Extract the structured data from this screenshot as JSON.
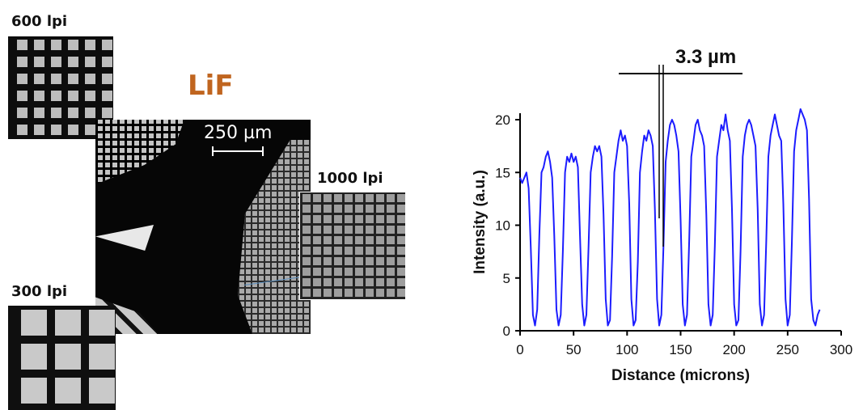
{
  "labels": {
    "lpi_600": "600 lpi",
    "lpi_300": "300 lpi",
    "lpi_1000": "1000 lpi",
    "material": "LiF",
    "scale_bar": "250 µm",
    "resolution": "3.3 µm"
  },
  "colors": {
    "material": "#c0651f",
    "trace": "#1c1cff"
  },
  "chart_data": {
    "type": "line",
    "title": "",
    "xlabel": "Distance (microns)",
    "ylabel": "Intensity (a.u.)",
    "xlim": [
      0,
      300
    ],
    "ylim": [
      0,
      21
    ],
    "xticks": [
      0,
      50,
      100,
      150,
      200,
      250,
      300
    ],
    "yticks": [
      0,
      5,
      10,
      15,
      20
    ],
    "series": [
      {
        "x": [
          0,
          2,
          4,
          6,
          8,
          10,
          12,
          14,
          16,
          18,
          20,
          22,
          24,
          26,
          28,
          30,
          32,
          34,
          36,
          38,
          40,
          42,
          44,
          46,
          48,
          50,
          52,
          54,
          56,
          58,
          60,
          62,
          64,
          66,
          68,
          70,
          72,
          74,
          76,
          78,
          80,
          82,
          84,
          86,
          88,
          90,
          92,
          94,
          96,
          98,
          100,
          102,
          104,
          106,
          108,
          110,
          112,
          114,
          116,
          118,
          120,
          122,
          124,
          126,
          128,
          130,
          132,
          134,
          136,
          138,
          140,
          142,
          144,
          146,
          148,
          150,
          152,
          154,
          156,
          158,
          160,
          162,
          164,
          166,
          168,
          170,
          172,
          174,
          176,
          178,
          180,
          182,
          184,
          186,
          188,
          190,
          192,
          194,
          196,
          198,
          200,
          202,
          204,
          206,
          208,
          210,
          212,
          214,
          216,
          218,
          220,
          222,
          224,
          226,
          228,
          230,
          232,
          234,
          236,
          238,
          240,
          242,
          244,
          246,
          248,
          250,
          252,
          254,
          256,
          258,
          260,
          262,
          264,
          266,
          268,
          270,
          272,
          274,
          276,
          278,
          280
        ],
        "y": [
          14.5,
          14.0,
          14.5,
          15.0,
          13.5,
          8.0,
          1.5,
          0.5,
          2.0,
          9.0,
          15.0,
          15.5,
          16.5,
          17.0,
          16.0,
          14.5,
          9.0,
          2.0,
          0.5,
          1.5,
          7.5,
          15.0,
          16.5,
          16.0,
          16.8,
          16.0,
          16.5,
          15.5,
          9.0,
          2.5,
          0.5,
          1.5,
          8.0,
          15.0,
          16.5,
          17.5,
          17.0,
          17.5,
          16.5,
          11.0,
          3.0,
          0.5,
          1.0,
          7.0,
          15.0,
          16.5,
          18.0,
          19.0,
          18.0,
          18.5,
          17.5,
          12.0,
          3.0,
          0.5,
          1.0,
          6.5,
          15.0,
          17.0,
          18.5,
          18.0,
          19.0,
          18.5,
          17.5,
          11.5,
          3.0,
          0.5,
          1.5,
          8.0,
          16.0,
          18.0,
          19.5,
          20.0,
          19.5,
          18.5,
          17.0,
          10.5,
          2.5,
          0.5,
          1.5,
          8.5,
          16.5,
          18.0,
          19.5,
          20.0,
          19.0,
          18.5,
          17.5,
          11.0,
          2.5,
          0.5,
          1.5,
          8.0,
          16.5,
          18.0,
          19.5,
          19.0,
          20.5,
          19.0,
          18.0,
          11.5,
          2.5,
          0.5,
          1.0,
          7.5,
          16.5,
          18.5,
          19.5,
          20.0,
          19.5,
          18.5,
          17.5,
          11.5,
          2.5,
          0.5,
          1.5,
          8.5,
          16.5,
          18.5,
          19.5,
          20.5,
          19.5,
          18.5,
          18.0,
          12.0,
          3.0,
          0.5,
          1.5,
          8.5,
          17.0,
          19.0,
          20.0,
          21.0,
          20.5,
          20.0,
          19.0,
          12.5,
          3.0,
          1.0,
          0.5,
          1.5,
          2.0
        ]
      }
    ]
  }
}
